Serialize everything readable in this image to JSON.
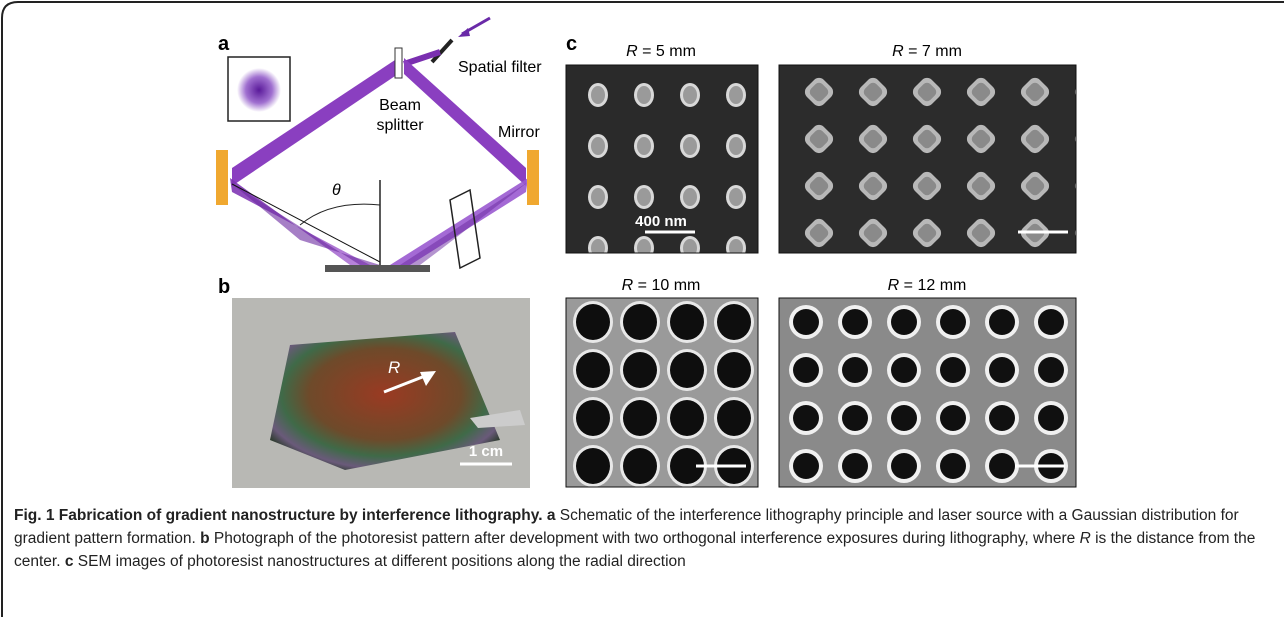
{
  "panel_labels": [
    "a",
    "b",
    "c"
  ],
  "schematic": {
    "spatial_filter": "Spatial filter",
    "beam_splitter": [
      "Beam",
      "splitter"
    ],
    "mirror": "Mirror",
    "angle": "θ"
  },
  "photo": {
    "arrow_label": "R",
    "scale_bar": "1 cm"
  },
  "sem": [
    {
      "symbol": "R",
      "position": "= 5 mm",
      "scale_bar": "400 nm"
    },
    {
      "symbol": "R",
      "position": "= 7 mm"
    },
    {
      "symbol": "R",
      "position": "= 10 mm"
    },
    {
      "symbol": "R",
      "position": "= 12 mm"
    }
  ],
  "caption": {
    "title": "Fig. 1 Fabrication of gradient nanostructure by interference lithography.",
    "parts": [
      {
        "label": "a",
        "text": "Schematic of the interference lithography principle and laser source with a Gaussian distribution for gradient pattern formation."
      },
      {
        "label": "b",
        "text": "Photograph of the photoresist pattern after development with two orthogonal interference exposures during lithography, where",
        "symbol": "R",
        "text_after": "is the distance from the center."
      },
      {
        "label": "c",
        "text": "SEM images of photoresist nanostructures at different positions along the radial direction"
      }
    ]
  }
}
